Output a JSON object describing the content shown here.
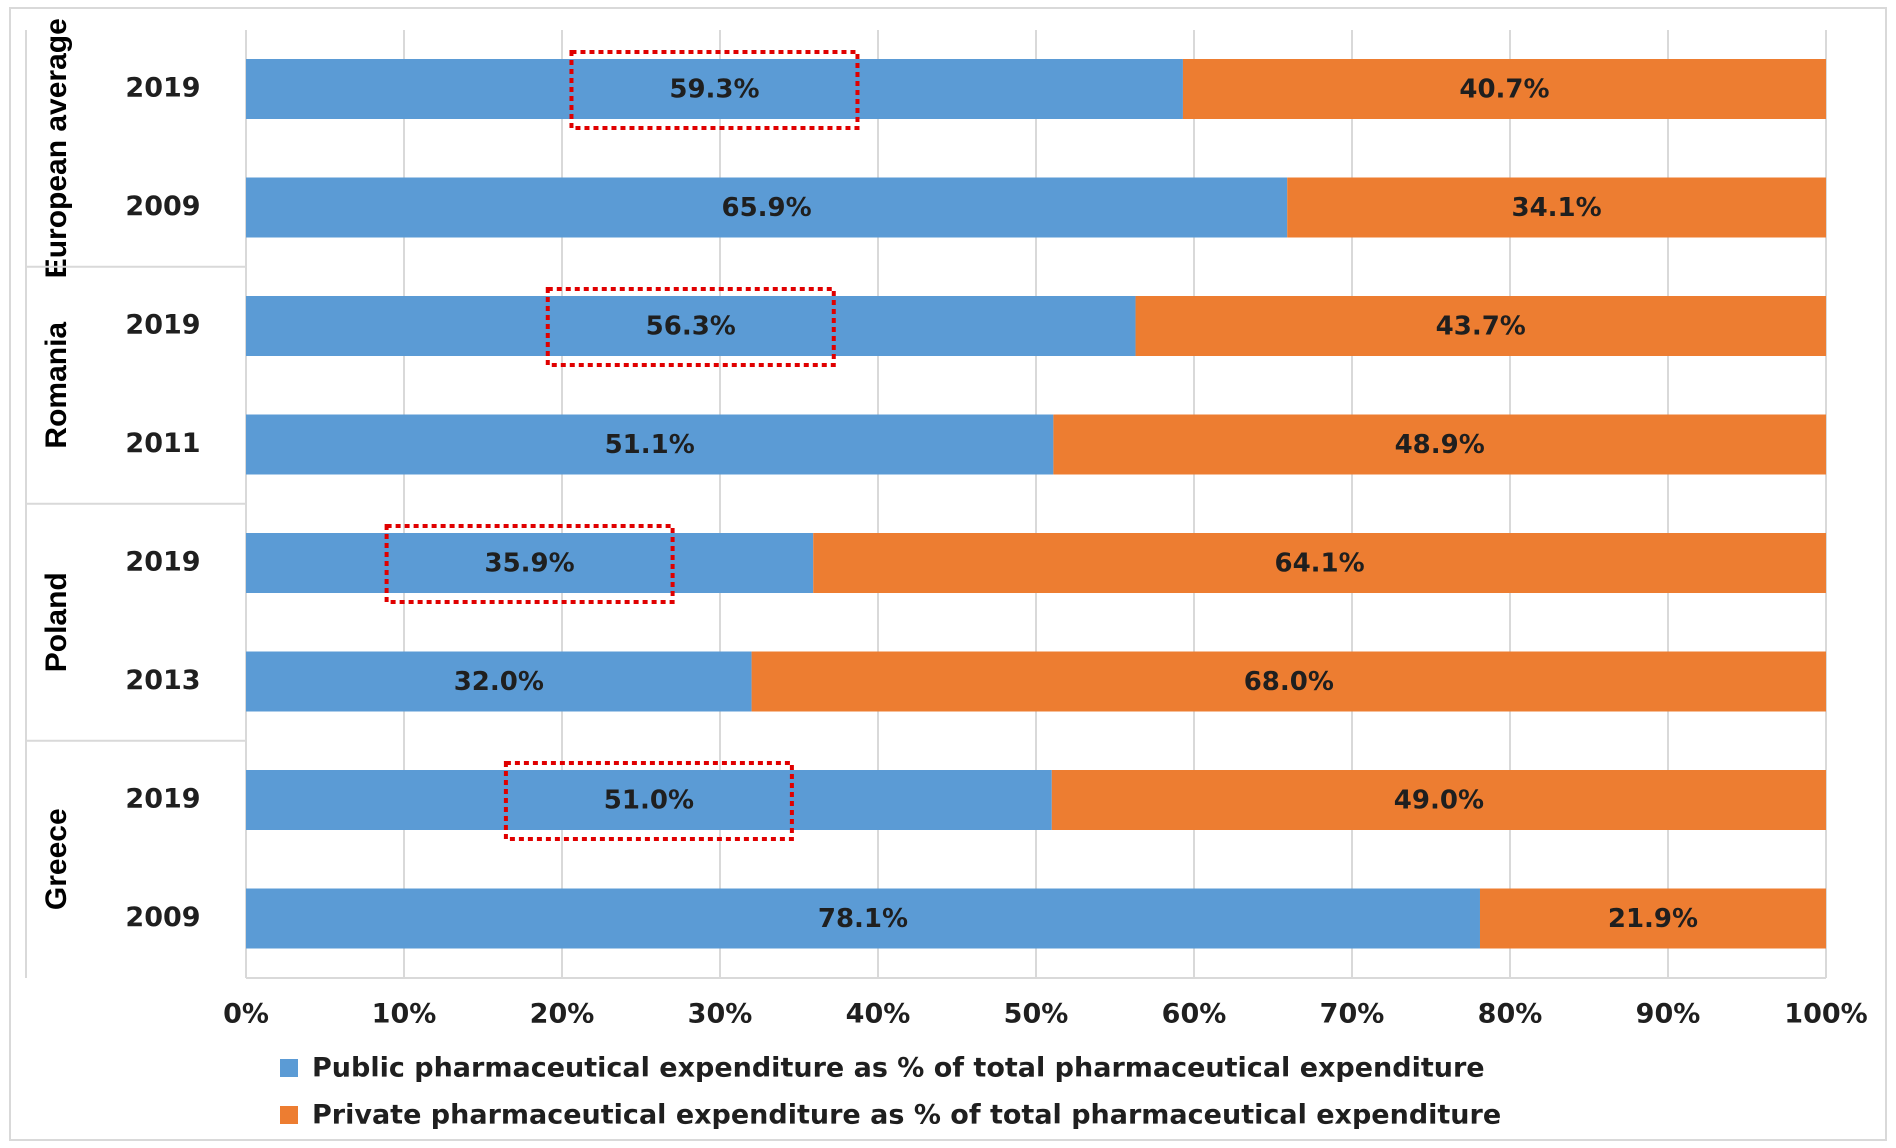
{
  "chart_data": {
    "type": "bar",
    "orientation": "horizontal",
    "stacked": "percent",
    "xlim": [
      0,
      100
    ],
    "x_ticks": [
      "0%",
      "10%",
      "20%",
      "30%",
      "40%",
      "50%",
      "60%",
      "70%",
      "80%",
      "90%",
      "100%"
    ],
    "groups": [
      {
        "name": "European average",
        "rows": [
          {
            "year": "2019",
            "public": 59.3,
            "private": 40.7,
            "public_label": "59.3%",
            "private_label": "40.7%",
            "highlighted": true
          },
          {
            "year": "2009",
            "public": 65.9,
            "private": 34.1,
            "public_label": "65.9%",
            "private_label": "34.1%",
            "highlighted": false
          }
        ]
      },
      {
        "name": "Romania",
        "rows": [
          {
            "year": "2019",
            "public": 56.3,
            "private": 43.7,
            "public_label": "56.3%",
            "private_label": "43.7%",
            "highlighted": true
          },
          {
            "year": "2011",
            "public": 51.1,
            "private": 48.9,
            "public_label": "51.1%",
            "private_label": "48.9%",
            "highlighted": false
          }
        ]
      },
      {
        "name": "Poland",
        "rows": [
          {
            "year": "2019",
            "public": 35.9,
            "private": 64.1,
            "public_label": "35.9%",
            "private_label": "64.1%",
            "highlighted": true
          },
          {
            "year": "2013",
            "public": 32.0,
            "private": 68.0,
            "public_label": "32.0%",
            "private_label": "68.0%",
            "highlighted": false
          }
        ]
      },
      {
        "name": "Greece",
        "rows": [
          {
            "year": "2019",
            "public": 51.0,
            "private": 49.0,
            "public_label": "51.0%",
            "private_label": "49.0%",
            "highlighted": true
          },
          {
            "year": "2009",
            "public": 78.1,
            "private": 21.9,
            "public_label": "78.1%",
            "private_label": "21.9%",
            "highlighted": false
          }
        ]
      }
    ],
    "series": [
      {
        "key": "public",
        "name": "Public pharmaceutical expenditure as % of total pharmaceutical expenditure",
        "color": "#5b9bd5"
      },
      {
        "key": "private",
        "name": "Private pharmaceutical expenditure as % of total pharmaceutical expenditure",
        "color": "#ed7d31"
      }
    ],
    "grid": true,
    "legend_position": "bottom",
    "highlight_color": "#e00000"
  }
}
